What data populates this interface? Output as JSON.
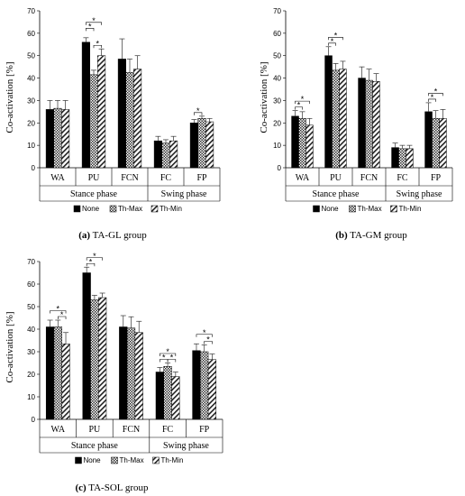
{
  "chart_data": [
    {
      "type": "bar",
      "caption_letter": "(a)",
      "caption_text": "TA-GL group",
      "ylabel": "Co-activation [%]",
      "ylim": [
        0,
        70
      ],
      "yticks": [
        0,
        10,
        20,
        30,
        40,
        50,
        60,
        70
      ],
      "categories": [
        "WA",
        "PU",
        "FCN",
        "FC",
        "FP"
      ],
      "phases": [
        {
          "label": "Stance phase",
          "from": 0,
          "to": 2
        },
        {
          "label": "Swing phase",
          "from": 3,
          "to": 4
        }
      ],
      "series": [
        {
          "name": "None",
          "values": [
            26,
            56,
            48.5,
            12,
            20
          ],
          "errors": [
            4,
            2,
            9,
            2,
            1.5
          ]
        },
        {
          "name": "Th-Max",
          "values": [
            26.5,
            41.5,
            42.5,
            11,
            22
          ],
          "errors": [
            3.5,
            2,
            6,
            1.5,
            1
          ]
        },
        {
          "name": "Th-Min",
          "values": [
            26,
            50,
            44,
            12,
            20.5
          ],
          "errors": [
            4,
            3,
            6,
            2,
            1.5
          ]
        }
      ],
      "significance": [
        {
          "category": 1,
          "from": 0,
          "to": 1,
          "level": 1,
          "label": "*"
        },
        {
          "category": 1,
          "from": 0,
          "to": 2,
          "level": 2,
          "label": "*"
        },
        {
          "category": 1,
          "from": 1,
          "to": 2,
          "level": 0,
          "label": "*"
        },
        {
          "category": 4,
          "from": 0,
          "to": 1,
          "level": 0,
          "label": "*"
        }
      ]
    },
    {
      "type": "bar",
      "caption_letter": "(b)",
      "caption_text": "TA-GM group",
      "ylabel": "Co-activation [%]",
      "ylim": [
        0,
        70
      ],
      "yticks": [
        0,
        10,
        20,
        30,
        40,
        50,
        60,
        70
      ],
      "categories": [
        "WA",
        "PU",
        "FCN",
        "FC",
        "FP"
      ],
      "phases": [
        {
          "label": "Stance phase",
          "from": 0,
          "to": 2
        },
        {
          "label": "Swing phase",
          "from": 3,
          "to": 4
        }
      ],
      "series": [
        {
          "name": "None",
          "values": [
            23,
            50,
            40,
            9,
            25
          ],
          "errors": [
            2.5,
            4,
            5,
            2,
            4
          ]
        },
        {
          "name": "Th-Max",
          "values": [
            22,
            43.5,
            39,
            8.5,
            22
          ],
          "errors": [
            3,
            3,
            5,
            1.5,
            3.5
          ]
        },
        {
          "name": "Th-Min",
          "values": [
            19,
            44,
            38.5,
            8.5,
            22
          ],
          "errors": [
            3,
            3.5,
            3.5,
            1.5,
            4
          ]
        }
      ],
      "significance": [
        {
          "category": 0,
          "from": 0,
          "to": 1,
          "level": 0,
          "label": "*"
        },
        {
          "category": 0,
          "from": 0,
          "to": 2,
          "level": 1,
          "label": "*"
        },
        {
          "category": 1,
          "from": 0,
          "to": 1,
          "level": 0,
          "label": "*"
        },
        {
          "category": 1,
          "from": 0,
          "to": 2,
          "level": 1,
          "label": "*"
        },
        {
          "category": 4,
          "from": 0,
          "to": 1,
          "level": 0,
          "label": "*"
        },
        {
          "category": 4,
          "from": 0,
          "to": 2,
          "level": 1,
          "label": "*"
        }
      ]
    },
    {
      "type": "bar",
      "caption_letter": "(c)",
      "caption_text": "TA-SOL group",
      "ylabel": "Co-activation [%]",
      "ylim": [
        0,
        70
      ],
      "yticks": [
        0,
        10,
        20,
        30,
        40,
        50,
        60,
        70
      ],
      "categories": [
        "WA",
        "PU",
        "FCN",
        "FC",
        "FP"
      ],
      "phases": [
        {
          "label": "Stance phase",
          "from": 0,
          "to": 2
        },
        {
          "label": "Swing phase",
          "from": 3,
          "to": 4
        }
      ],
      "series": [
        {
          "name": "None",
          "values": [
            41,
            65,
            41,
            21,
            30.5
          ],
          "errors": [
            3,
            2.5,
            5,
            2,
            3
          ]
        },
        {
          "name": "Th-Max",
          "values": [
            41,
            53,
            40.5,
            23.5,
            30
          ],
          "errors": [
            3,
            2,
            5,
            1.5,
            3
          ]
        },
        {
          "name": "Th-Min",
          "values": [
            33.5,
            54,
            38.5,
            19,
            26.5
          ],
          "errors": [
            5,
            2,
            5,
            2,
            2.5
          ]
        }
      ],
      "significance": [
        {
          "category": 0,
          "from": 0,
          "to": 2,
          "level": 1,
          "label": "*"
        },
        {
          "category": 0,
          "from": 1,
          "to": 2,
          "level": 0,
          "label": "*"
        },
        {
          "category": 1,
          "from": 0,
          "to": 1,
          "level": 0,
          "label": "*"
        },
        {
          "category": 1,
          "from": 0,
          "to": 2,
          "level": 1,
          "label": "*"
        },
        {
          "category": 3,
          "from": 0,
          "to": 1,
          "level": 0,
          "label": "*"
        },
        {
          "category": 3,
          "from": 0,
          "to": 2,
          "level": 1,
          "label": "*"
        },
        {
          "category": 3,
          "from": 1,
          "to": 2,
          "level": 0,
          "label": "*"
        },
        {
          "category": 4,
          "from": 0,
          "to": 2,
          "level": 1,
          "label": "*"
        },
        {
          "category": 4,
          "from": 1,
          "to": 2,
          "level": 0,
          "label": "*"
        }
      ]
    }
  ]
}
